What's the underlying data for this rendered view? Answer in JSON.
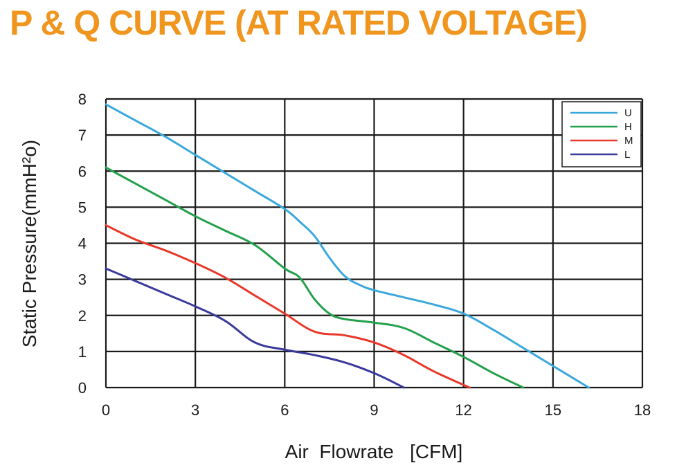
{
  "title": "P & Q CURVE (AT RATED VOLTAGE)",
  "colors": {
    "title": "#f0961e",
    "grid": "#1a1a1a"
  },
  "chart_data": {
    "type": "line",
    "title": "P & Q CURVE (AT RATED VOLTAGE)",
    "xlabel": "Air  Flowrate   [CFM]",
    "ylabel": "Static Pressure(mmH²o)",
    "xlim": [
      0,
      18
    ],
    "ylim": [
      0,
      8
    ],
    "xticks": [
      "0",
      "3",
      "6",
      "9",
      "12",
      "15",
      "18"
    ],
    "yticks": [
      "0",
      "1",
      "2",
      "3",
      "4",
      "5",
      "6",
      "7",
      "8"
    ],
    "grid": true,
    "legend_position": "top-right",
    "series": [
      {
        "name": "U",
        "color": "#3aa8dc",
        "x": [
          0,
          1,
          2,
          3,
          4,
          5,
          6,
          6.5,
          7,
          7.5,
          8,
          8.5,
          9,
          10,
          11,
          12,
          13,
          14,
          15,
          16.2
        ],
        "y": [
          7.85,
          7.4,
          6.95,
          6.45,
          5.95,
          5.45,
          4.95,
          4.6,
          4.2,
          3.6,
          3.1,
          2.85,
          2.7,
          2.5,
          2.3,
          2.05,
          1.6,
          1.1,
          0.6,
          0
        ]
      },
      {
        "name": "H",
        "color": "#23a04b",
        "x": [
          0,
          1,
          2,
          3,
          4,
          5,
          6,
          6.5,
          7,
          7.5,
          8,
          9,
          10,
          11,
          12,
          13,
          14
        ],
        "y": [
          6.1,
          5.65,
          5.2,
          4.75,
          4.35,
          3.95,
          3.3,
          3.05,
          2.45,
          2.05,
          1.9,
          1.8,
          1.65,
          1.25,
          0.85,
          0.4,
          0
        ]
      },
      {
        "name": "M",
        "color": "#e8382a",
        "x": [
          0,
          1,
          2,
          3,
          4,
          5,
          6,
          7,
          8,
          9,
          10,
          11,
          12.2
        ],
        "y": [
          4.5,
          4.1,
          3.8,
          3.45,
          3.05,
          2.55,
          2.05,
          1.55,
          1.45,
          1.25,
          0.9,
          0.45,
          0
        ]
      },
      {
        "name": "L",
        "color": "#3a3a9c",
        "x": [
          0,
          1,
          2,
          3,
          4,
          5,
          6,
          7,
          8,
          9,
          10
        ],
        "y": [
          3.3,
          2.95,
          2.6,
          2.25,
          1.85,
          1.25,
          1.05,
          0.9,
          0.7,
          0.4,
          0
        ]
      }
    ]
  }
}
